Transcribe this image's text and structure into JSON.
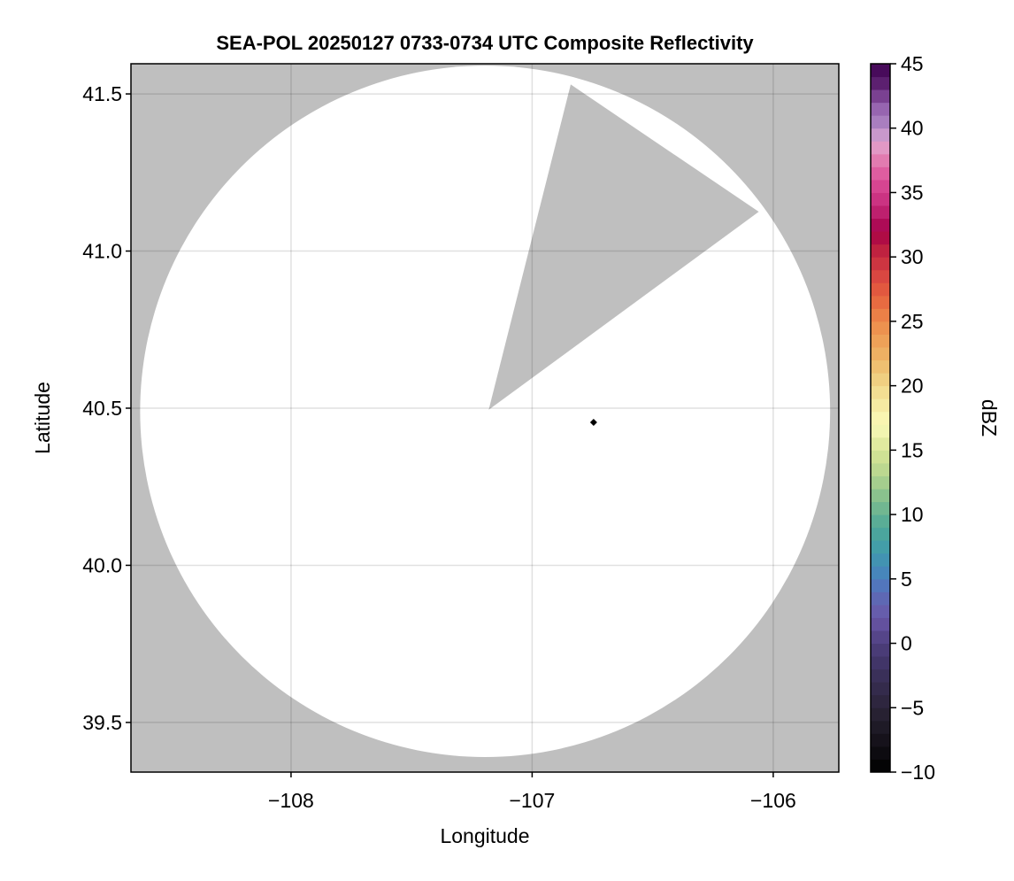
{
  "chart_data": {
    "type": "heatmap",
    "title": "SEA-POL 20250127 0733-0734 UTC Composite Reflectivity",
    "xlabel": "Longitude",
    "ylabel": "Latitude",
    "xlim": [
      -108.664,
      -105.728
    ],
    "ylim": [
      39.342,
      41.596
    ],
    "xticks": [
      -108,
      -107,
      -106
    ],
    "xtick_labels": [
      "−108",
      "−107",
      "−106"
    ],
    "yticks": [
      39.5,
      40.0,
      40.5,
      41.0,
      41.5
    ],
    "ytick_labels": [
      "39.5",
      "40.0",
      "40.5",
      "41.0",
      "41.5"
    ],
    "grid": true,
    "background_color": "#bfbfbf",
    "radar_coverage": {
      "center": [
        -107.195,
        40.49
      ],
      "radius_lon": 1.431,
      "radius_lat": 1.1,
      "fill": "#ffffff",
      "blocked_sector": {
        "apex": [
          -107.18,
          40.495
        ],
        "edge_points": [
          [
            -106.84,
            41.53
          ],
          [
            -106.06,
            41.125
          ]
        ],
        "fill": "#bfbfbf"
      }
    },
    "marker": {
      "lon": -106.745,
      "lat": 40.455,
      "shape": "diamond",
      "color": "#000000"
    },
    "colorbar": {
      "label": "dBZ",
      "range": [
        -10,
        45
      ],
      "step": 1,
      "ticks": [
        -10,
        -5,
        0,
        5,
        10,
        15,
        20,
        25,
        30,
        35,
        40,
        45
      ],
      "tick_labels": [
        "−10",
        "−5",
        "0",
        "5",
        "10",
        "15",
        "20",
        "25",
        "30",
        "35",
        "40",
        "45"
      ],
      "colormap": [
        [
          -10,
          "#000000"
        ],
        [
          -7,
          "#1a1620"
        ],
        [
          -5,
          "#2b2438"
        ],
        [
          -2,
          "#3d3260"
        ],
        [
          0,
          "#4e3f7f"
        ],
        [
          2,
          "#6a57a8"
        ],
        [
          4,
          "#5a6db8"
        ],
        [
          5,
          "#4a7fc0"
        ],
        [
          7,
          "#3f9aad"
        ],
        [
          9,
          "#4fa898"
        ],
        [
          11,
          "#7cbc8e"
        ],
        [
          13,
          "#b3d48e"
        ],
        [
          15,
          "#d8e596"
        ],
        [
          17,
          "#fafab8"
        ],
        [
          19,
          "#f4e59a"
        ],
        [
          21,
          "#efc878"
        ],
        [
          23,
          "#eea85c"
        ],
        [
          25,
          "#ed8a4a"
        ],
        [
          27,
          "#e6603e"
        ],
        [
          29,
          "#d43e42"
        ],
        [
          31,
          "#b8183f"
        ],
        [
          32,
          "#a5004a"
        ],
        [
          34,
          "#c52a7a"
        ],
        [
          36,
          "#dc4e98"
        ],
        [
          38,
          "#e48ab8"
        ],
        [
          39,
          "#e0a6d2"
        ],
        [
          40,
          "#b28ac6"
        ],
        [
          42,
          "#8e58a8"
        ],
        [
          43,
          "#662a7a"
        ],
        [
          45,
          "#3e0050"
        ]
      ]
    }
  }
}
